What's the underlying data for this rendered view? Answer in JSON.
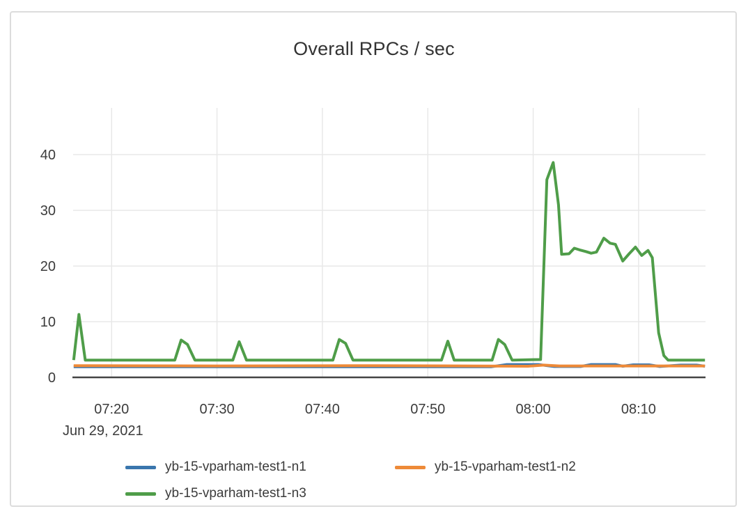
{
  "card": {
    "background": "#ffffff",
    "border_color": "#dcdcdc"
  },
  "chart_data": {
    "type": "line",
    "title": "Overall RPCs / sec",
    "grid": true,
    "legend_position": "bottom",
    "x_axis": {
      "unit": "minutes since 07:00, Jun 29 2021",
      "date_label": "Jun 29, 2021",
      "tick_minutes": [
        20,
        30,
        40,
        50,
        60,
        70
      ],
      "tick_labels": [
        "07:20",
        "07:30",
        "07:40",
        "07:50",
        "08:00",
        "08:10"
      ],
      "range_minutes": [
        16.35,
        76.35
      ]
    },
    "y_axis": {
      "ticks": [
        0,
        10,
        20,
        30,
        40
      ],
      "range": [
        0,
        48.4
      ]
    },
    "colors": {
      "axis_line": "#444444",
      "grid_line": "#e8e8e8",
      "tick_text": "#3b3b3b",
      "title_text": "#333333"
    },
    "series": [
      {
        "name": "yb-15-vparham-test1-n1",
        "color": "#3a76ad",
        "points": [
          [
            16.4,
            1.9
          ],
          [
            40,
            1.9
          ],
          [
            56,
            1.9
          ],
          [
            57.5,
            2.3
          ],
          [
            60.5,
            2.3
          ],
          [
            62,
            1.95
          ],
          [
            64.5,
            1.95
          ],
          [
            65.5,
            2.3
          ],
          [
            67.8,
            2.3
          ],
          [
            68.5,
            2.0
          ],
          [
            69.5,
            2.25
          ],
          [
            71,
            2.25
          ],
          [
            72,
            1.95
          ],
          [
            74,
            2.2
          ],
          [
            75.5,
            2.2
          ],
          [
            76.3,
            2.0
          ]
        ]
      },
      {
        "name": "yb-15-vparham-test1-n2",
        "color": "#ee8a38",
        "points": [
          [
            16.4,
            2.1
          ],
          [
            30,
            2.05
          ],
          [
            45,
            2.1
          ],
          [
            59.5,
            2.0
          ],
          [
            61,
            2.2
          ],
          [
            62.5,
            2.05
          ],
          [
            76.3,
            2.05
          ]
        ]
      },
      {
        "name": "yb-15-vparham-test1-n3",
        "color": "#4f9d49",
        "points": [
          [
            16.4,
            3.1
          ],
          [
            16.9,
            11.3
          ],
          [
            17.5,
            3.1
          ],
          [
            26.0,
            3.1
          ],
          [
            26.6,
            6.7
          ],
          [
            27.2,
            5.9
          ],
          [
            27.9,
            3.1
          ],
          [
            31.5,
            3.1
          ],
          [
            32.1,
            6.4
          ],
          [
            32.8,
            3.1
          ],
          [
            41.0,
            3.1
          ],
          [
            41.6,
            6.8
          ],
          [
            42.2,
            6.1
          ],
          [
            42.9,
            3.1
          ],
          [
            51.3,
            3.1
          ],
          [
            51.9,
            6.5
          ],
          [
            52.5,
            3.1
          ],
          [
            56.1,
            3.1
          ],
          [
            56.7,
            6.8
          ],
          [
            57.3,
            5.9
          ],
          [
            58.0,
            3.1
          ],
          [
            60.7,
            3.2
          ],
          [
            61.3,
            35.5
          ],
          [
            61.9,
            38.6
          ],
          [
            62.4,
            31.0
          ],
          [
            62.7,
            22.1
          ],
          [
            63.4,
            22.2
          ],
          [
            63.9,
            23.2
          ],
          [
            64.4,
            22.9
          ],
          [
            65.0,
            22.6
          ],
          [
            65.5,
            22.3
          ],
          [
            66.0,
            22.5
          ],
          [
            66.7,
            25.0
          ],
          [
            67.3,
            24.1
          ],
          [
            67.8,
            23.9
          ],
          [
            68.5,
            20.9
          ],
          [
            69.1,
            22.2
          ],
          [
            69.7,
            23.4
          ],
          [
            70.3,
            21.9
          ],
          [
            70.9,
            22.8
          ],
          [
            71.3,
            21.5
          ],
          [
            71.9,
            8.0
          ],
          [
            72.4,
            3.9
          ],
          [
            72.8,
            3.1
          ],
          [
            76.3,
            3.1
          ]
        ]
      }
    ]
  }
}
